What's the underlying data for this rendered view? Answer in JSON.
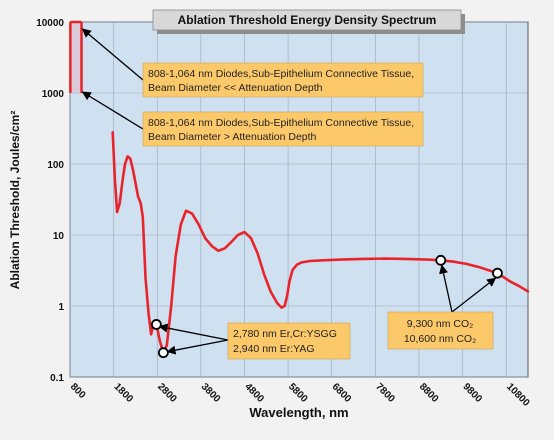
{
  "chart_data": {
    "type": "line",
    "title": "Ablation Threshold Energy Density Spectrum",
    "xlabel": "Wavelength, nm",
    "ylabel": "Ablation Threshold, Joules/cm²",
    "x_ticks": [
      "800",
      "1800",
      "2800",
      "3800",
      "4800",
      "5800",
      "6800",
      "7800",
      "8800",
      "9800",
      "10800"
    ],
    "y_ticks": [
      "0.1",
      "1",
      "10",
      "100",
      "1000",
      "10000"
    ],
    "xlim": [
      800,
      11300
    ],
    "ylim": [
      0.1,
      10000
    ],
    "yscale": "log",
    "grid": true,
    "colors": {
      "series": "#e8242b",
      "plot_bg": "#cfe0f1",
      "grid": "#9aa8b8",
      "callout": "#fcc96a"
    },
    "series": [
      {
        "x": [
          1780,
          1830,
          1880,
          1940,
          2000,
          2060,
          2120,
          2180,
          2240,
          2300,
          2360,
          2420,
          2470,
          2530,
          2600,
          2660,
          2720,
          2780,
          2860,
          2940,
          3020,
          3120,
          3220,
          3340,
          3460,
          3600,
          3750,
          3900,
          4050,
          4200,
          4350,
          4500,
          4650,
          4800,
          4950,
          5100,
          5250,
          5400,
          5550,
          5650,
          5720,
          5780,
          5830,
          5900,
          6000,
          6100,
          6300,
          6600,
          7000,
          7500,
          8000,
          8500,
          9000,
          9300,
          9600,
          9900,
          10200,
          10600,
          10900,
          11100,
          11300
        ],
        "y": [
          280,
          60,
          21,
          28,
          55,
          100,
          128,
          120,
          85,
          55,
          35,
          28,
          18,
          2.5,
          0.8,
          0.4,
          0.6,
          0.55,
          0.32,
          0.22,
          0.28,
          1,
          5,
          14,
          22,
          20,
          14,
          9,
          7,
          6,
          6.5,
          8,
          10,
          11,
          9,
          5.5,
          2.8,
          1.6,
          1.1,
          0.95,
          1,
          1.4,
          2.2,
          3.2,
          3.8,
          4.1,
          4.3,
          4.4,
          4.5,
          4.6,
          4.65,
          4.6,
          4.5,
          4.4,
          4.2,
          3.9,
          3.5,
          2.9,
          2.2,
          1.9,
          1.6
        ]
      }
    ],
    "markers": [
      {
        "x": 2780,
        "y": 0.55
      },
      {
        "x": 2940,
        "y": 0.22
      },
      {
        "x": 9300,
        "y": 4.4
      },
      {
        "x": 10600,
        "y": 2.9
      }
    ],
    "diode_band": {
      "x": [
        808,
        1064
      ],
      "y": [
        1000,
        10000
      ]
    },
    "annotations": {
      "diode_small_beam": [
        "808-1,064 nm Diodes,Sub-Epithelium Connective Tissue,",
        "Beam Diameter << Attenuation Depth"
      ],
      "diode_large_beam": [
        "808-1,064 nm Diodes,Sub-Epithelium Connective Tissue,",
        "Beam Diameter > Attenuation Depth"
      ],
      "erbium": [
        "2,780 nm Er,Cr:YSGG",
        "2,940 nm Er:YAG"
      ],
      "co2": [
        "9,300 nm CO₂",
        "10,600 nm CO₂"
      ]
    }
  }
}
